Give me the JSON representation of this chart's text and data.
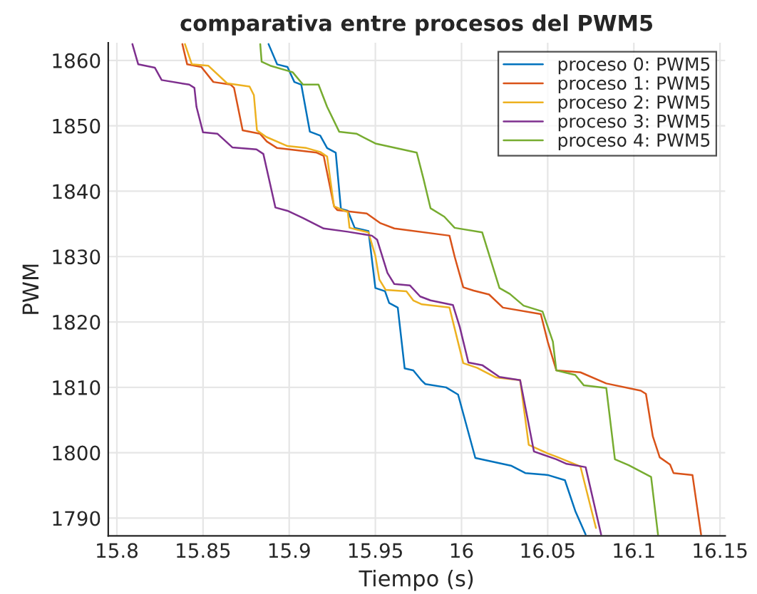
{
  "chart_data": {
    "type": "line",
    "title": "comparativa entre procesos del PWM5",
    "xlabel": "Tiempo (s)",
    "ylabel": "PWM",
    "xlim": [
      15.795,
      16.153
    ],
    "ylim": [
      1787.3,
      1862.7
    ],
    "xticks": [
      15.8,
      15.85,
      15.9,
      15.95,
      16,
      16.05,
      16.1,
      16.15
    ],
    "yticks": [
      1790,
      1800,
      1810,
      1820,
      1830,
      1840,
      1850,
      1860
    ],
    "grid": true,
    "legend": "top right",
    "marker": "none",
    "line_style": "solid",
    "series": [
      {
        "name": "proceso 0: PWM5",
        "color": "#0072bd",
        "x": [
          15.888,
          15.893,
          15.899,
          15.903,
          15.907,
          15.912,
          15.918,
          15.922,
          15.927,
          15.93,
          15.934,
          15.938,
          15.946,
          15.95,
          15.9556,
          15.958,
          15.963,
          15.967,
          15.972,
          15.977,
          15.979,
          15.991,
          15.998,
          16.008,
          16.029,
          16.037,
          16.05,
          16.06,
          16.066,
          16.072
        ],
        "values": [
          1862.5,
          1859.4,
          1859.0,
          1856.7,
          1856.3,
          1849.1,
          1848.5,
          1846.6,
          1845.9,
          1837.3,
          1837.0,
          1834.4,
          1833.9,
          1825.2,
          1824.7,
          1822.9,
          1822.2,
          1812.9,
          1812.6,
          1811.0,
          1810.5,
          1810.0,
          1808.9,
          1799.2,
          1798.0,
          1796.9,
          1796.6,
          1795.8,
          1791.1,
          1787.5
        ]
      },
      {
        "name": "proceso 1: PWM5",
        "color": "#d95319",
        "x": [
          15.838,
          15.8408,
          15.849,
          15.856,
          15.866,
          15.868,
          15.873,
          15.883,
          15.887,
          15.893,
          15.916,
          15.92,
          15.926,
          15.928,
          15.945,
          15.953,
          15.961,
          15.993,
          15.996,
          16.001,
          16.007,
          16.016,
          16.024,
          16.046,
          16.05,
          16.055,
          16.069,
          16.084,
          16.104,
          16.107,
          16.111,
          16.115,
          16.121,
          16.123,
          16.134,
          16.139
        ],
        "values": [
          1862.5,
          1859.4,
          1859.0,
          1856.7,
          1856.3,
          1855.8,
          1849.3,
          1848.8,
          1847.6,
          1846.6,
          1845.9,
          1845.4,
          1837.7,
          1837.1,
          1836.6,
          1835.1,
          1834.3,
          1833.2,
          1830.0,
          1825.3,
          1824.8,
          1824.2,
          1822.2,
          1821.2,
          1817.0,
          1812.6,
          1812.3,
          1810.6,
          1809.5,
          1809.0,
          1802.5,
          1799.3,
          1798.2,
          1796.9,
          1796.6,
          1787.5
        ]
      },
      {
        "name": "proceso 2: PWM5",
        "color": "#edb120",
        "x": [
          15.8395,
          15.8435,
          15.853,
          15.864,
          15.877,
          15.8795,
          15.8813,
          15.8867,
          15.899,
          15.91,
          15.918,
          15.922,
          15.926,
          15.934,
          15.935,
          15.946,
          15.95,
          15.9523,
          15.956,
          15.968,
          15.972,
          15.977,
          15.993,
          16.001,
          16.009,
          16.02,
          16.034,
          16.039,
          16.05,
          16.055,
          16.069,
          16.078
        ],
        "values": [
          1862.5,
          1859.4,
          1859.2,
          1856.5,
          1856.0,
          1854.7,
          1849.3,
          1848.3,
          1846.9,
          1846.6,
          1846.0,
          1845.3,
          1837.7,
          1836.8,
          1834.4,
          1833.7,
          1830.1,
          1826.5,
          1824.9,
          1824.7,
          1823.3,
          1822.7,
          1822.2,
          1813.7,
          1813.0,
          1811.5,
          1811.1,
          1801.2,
          1799.9,
          1799.4,
          1797.9,
          1788.5
        ]
      },
      {
        "name": "proceso 3: PWM5",
        "color": "#7e2f8e",
        "x": [
          15.809,
          15.8124,
          15.822,
          15.826,
          15.842,
          15.845,
          15.8462,
          15.85,
          15.8583,
          15.867,
          15.881,
          15.885,
          15.892,
          15.899,
          15.908,
          15.92,
          15.934,
          15.948,
          15.951,
          15.957,
          15.961,
          15.97,
          15.976,
          15.982,
          15.995,
          15.999,
          16.004,
          16.012,
          16.022,
          16.034,
          16.042,
          16.055,
          16.061,
          16.072,
          16.081
        ],
        "values": [
          1862.5,
          1859.4,
          1858.9,
          1857.0,
          1856.3,
          1855.8,
          1852.9,
          1849.0,
          1848.8,
          1846.7,
          1846.4,
          1845.7,
          1837.5,
          1837.0,
          1835.9,
          1834.3,
          1833.8,
          1833.2,
          1832.6,
          1827.5,
          1825.8,
          1825.6,
          1823.9,
          1823.3,
          1822.6,
          1819.2,
          1813.8,
          1813.4,
          1811.6,
          1811.1,
          1800.2,
          1799.0,
          1798.3,
          1797.8,
          1787.5
        ]
      },
      {
        "name": "proceso 4: PWM5",
        "color": "#77ac30",
        "x": [
          15.8832,
          15.884,
          15.889,
          15.902,
          15.908,
          15.917,
          15.922,
          15.929,
          15.939,
          15.95,
          15.974,
          15.978,
          15.982,
          15.99,
          15.996,
          16.012,
          16.022,
          16.028,
          16.036,
          16.047,
          16.053,
          16.055,
          16.066,
          16.071,
          16.084,
          16.089,
          16.097,
          16.11,
          16.114
        ],
        "values": [
          1862.5,
          1859.8,
          1859.2,
          1858.2,
          1856.3,
          1856.3,
          1852.9,
          1849.1,
          1848.8,
          1847.3,
          1845.9,
          1841.8,
          1837.4,
          1836.1,
          1834.4,
          1833.7,
          1825.2,
          1824.3,
          1822.5,
          1821.6,
          1817.0,
          1812.6,
          1811.9,
          1810.3,
          1809.9,
          1799.0,
          1798.1,
          1796.3,
          1787.5
        ]
      }
    ]
  }
}
